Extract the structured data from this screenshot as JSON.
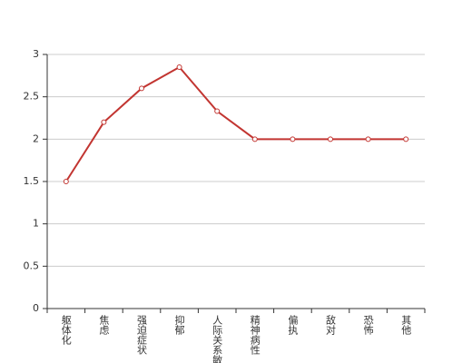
{
  "chart_data": {
    "type": "line",
    "categories": [
      "躯体化",
      "焦虑",
      "强迫症状",
      "抑郁",
      "人际关系敏感",
      "精神病性",
      "偏执",
      "敌对",
      "恐怖",
      "其他"
    ],
    "values": [
      1.5,
      2.2,
      2.6,
      2.85,
      2.33,
      2,
      2,
      2,
      2,
      2
    ],
    "color": "#c23531",
    "ylim": [
      0,
      3
    ],
    "yticks": [
      0,
      0.5,
      1,
      1.5,
      2,
      2.5,
      3
    ],
    "grid": true
  }
}
